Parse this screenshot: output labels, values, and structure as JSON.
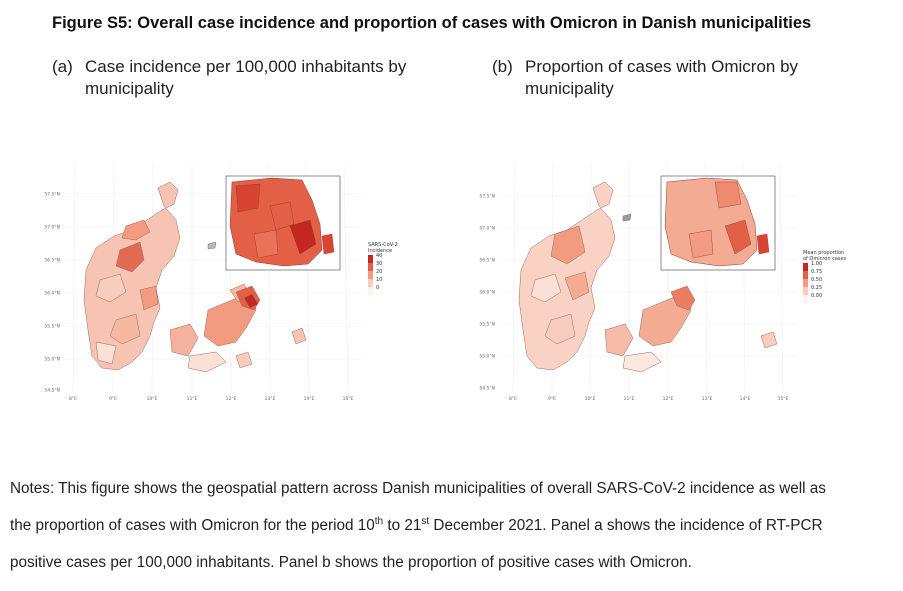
{
  "figure_title": "Figure S5: Overall case incidence and proportion of cases with Omicron in Danish municipalities",
  "panel_a": {
    "label": "(a)",
    "title": "Case incidence per 100,000 inhabitants by municipality",
    "lat_ticks": [
      "57.5°N",
      "57.0°N",
      "56.5°N",
      "56.0°N",
      "55.5°N",
      "55.0°N",
      "54.5°N"
    ],
    "lon_ticks": [
      "8°E",
      "9°E",
      "10°E",
      "11°E",
      "12°E",
      "13°E",
      "14°E",
      "15°E"
    ],
    "legend": {
      "title_line1": "SARS-CoV-2",
      "title_line2": "Incidence",
      "labels": [
        "40",
        "30",
        "20",
        "10",
        "0"
      ],
      "colors": [
        "#c3271f",
        "#e35f45",
        "#f29b80",
        "#f9cdbd",
        "#fdf2ed"
      ]
    }
  },
  "panel_b": {
    "label": "(b)",
    "title": "Proportion of cases with Omicron by municipality",
    "lat_ticks": [
      "57.5°N",
      "57.0°N",
      "56.5°N",
      "56.0°N",
      "55.5°N",
      "55.0°N",
      "54.5°N"
    ],
    "lon_ticks": [
      "8°E",
      "9°E",
      "10°E",
      "11°E",
      "12°E",
      "13°E",
      "14°E",
      "15°E"
    ],
    "legend": {
      "title_line1": "Mean proportion",
      "title_line2": "of Omicron cases",
      "labels": [
        "1.00",
        "0.75",
        "0.50",
        "0.25",
        "0.00"
      ],
      "colors": [
        "#c3271f",
        "#e35f45",
        "#f29b80",
        "#f9cdbd",
        "#fdf2ed"
      ]
    }
  },
  "notes": {
    "line1": "Notes: This figure shows the geospatial pattern across Danish municipalities of overall SARS-CoV-2 incidence as well as",
    "line2_pre": "the proportion of cases with Omicron for the period 10",
    "line2_sup1": "th",
    "line2_mid": " to 21",
    "line2_sup2": "st",
    "line2_post": " December 2021. Panel a shows the incidence of RT-PCR",
    "line3": "positive cases per 100,000 inhabitants. Panel b shows the proportion of positive cases with Omicron."
  }
}
